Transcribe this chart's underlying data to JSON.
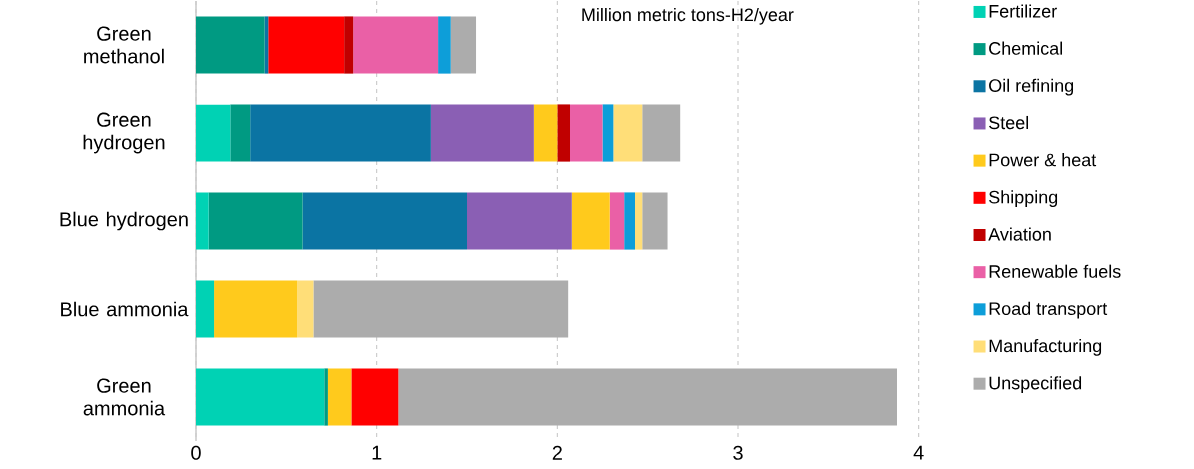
{
  "chart_data": {
    "type": "bar",
    "orientation": "horizontal",
    "stacked": true,
    "xlabel": "Million metric tons-H2/year",
    "categories": [
      "Green methanol",
      "Green hydrogen",
      "Blue hydrogen",
      "Blue ammonia",
      "Green ammonia"
    ],
    "xlim": [
      0,
      4
    ],
    "xticks": [
      0,
      1,
      2,
      3,
      4
    ],
    "grid": "x",
    "legend": "right",
    "series": [
      {
        "name": "Fertilizer",
        "color": "#00d2b4",
        "values": [
          0,
          0.19,
          0.07,
          0.1,
          0.71
        ]
      },
      {
        "name": "Chemical",
        "color": "#009a82",
        "values": [
          0.38,
          0.11,
          0.52,
          0,
          0.02
        ]
      },
      {
        "name": "Oil refining",
        "color": "#0b74a3",
        "values": [
          0.02,
          1.0,
          0.91,
          0,
          0
        ]
      },
      {
        "name": "Steel",
        "color": "#8a5fb4",
        "values": [
          0,
          0.57,
          0.58,
          0,
          0
        ]
      },
      {
        "name": "Power & heat",
        "color": "#ffca1c",
        "values": [
          0,
          0.13,
          0.21,
          0.46,
          0.13
        ]
      },
      {
        "name": "Shipping",
        "color": "#ff0000",
        "values": [
          0.42,
          0,
          0,
          0,
          0.26
        ]
      },
      {
        "name": "Aviation",
        "color": "#c00000",
        "values": [
          0.05,
          0.07,
          0,
          0,
          0
        ]
      },
      {
        "name": "Renewable fuels",
        "color": "#ea60a6",
        "values": [
          0.47,
          0.18,
          0.08,
          0,
          0
        ]
      },
      {
        "name": "Road transport",
        "color": "#0d9ed9",
        "values": [
          0.07,
          0.06,
          0.06,
          0,
          0
        ]
      },
      {
        "name": "Manufacturing",
        "color": "#ffde78",
        "values": [
          0,
          0.16,
          0.04,
          0.09,
          0
        ]
      },
      {
        "name": "Unspecified",
        "color": "#acacac",
        "values": [
          0.14,
          0.21,
          0.14,
          1.41,
          2.76
        ]
      }
    ]
  }
}
